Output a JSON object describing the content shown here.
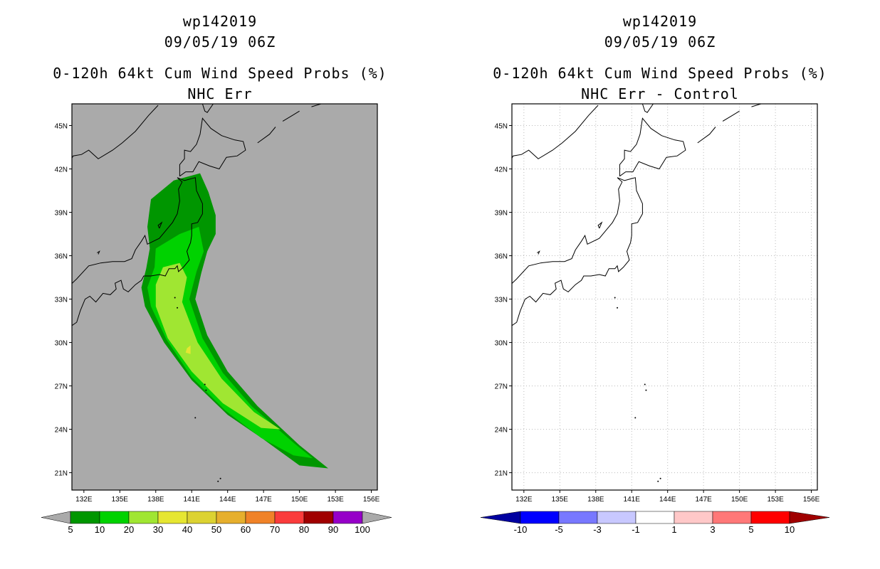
{
  "colors": {
    "land_bg_left": "#aaaaaa",
    "plot_bg_right": "#ffffff",
    "coast": "#000000",
    "grid": "#bbbbbb"
  },
  "panels": [
    {
      "title_line1": "wp142019",
      "title_line2": "09/05/19 06Z",
      "title_line3": "0-120h 64kt Cum Wind Speed Probs (%)",
      "title_line4": "NHC Err"
    },
    {
      "title_line1": "wp142019",
      "title_line2": "09/05/19 06Z",
      "title_line3": "0-120h 64kt Cum Wind Speed Probs (%)",
      "title_line4": "NHC Err - Control"
    }
  ],
  "axes": {
    "lon_ticks": [
      "132E",
      "135E",
      "138E",
      "141E",
      "144E",
      "147E",
      "150E",
      "153E",
      "156E"
    ],
    "lat_ticks": [
      "45N",
      "42N",
      "39N",
      "36N",
      "33N",
      "30N",
      "27N",
      "24N",
      "21N"
    ],
    "lon_values": [
      132,
      135,
      138,
      141,
      144,
      147,
      150,
      153,
      156
    ],
    "lat_values": [
      45,
      42,
      39,
      36,
      33,
      30,
      27,
      24,
      21
    ],
    "lon_range": [
      131,
      156.5
    ],
    "lat_range": [
      19.8,
      46.5
    ]
  },
  "colorbar_left": {
    "labels": [
      "5",
      "10",
      "20",
      "30",
      "40",
      "50",
      "60",
      "70",
      "80",
      "90",
      "100"
    ],
    "colors": [
      "#009600",
      "#00d200",
      "#a0e632",
      "#e6e632",
      "#dcd232",
      "#e6af2d",
      "#f08228",
      "#fa3c3c",
      "#a00000",
      "#9600c8"
    ],
    "end_color": "#aaaaaa"
  },
  "colorbar_right": {
    "labels": [
      "-10",
      "-5",
      "-3",
      "-1",
      "1",
      "3",
      "5",
      "10"
    ],
    "colors": [
      "#0000ff",
      "#7878ff",
      "#c8c8ff",
      "#ffffff",
      "#ffc8c8",
      "#ff7878",
      "#ff0000"
    ],
    "low_end": "#0000a0",
    "high_end": "#a00000"
  },
  "chart_data": {
    "type": "heatmap",
    "variable": "0-120h 64kt cumulative wind speed probability (%)",
    "storm": "wp142019",
    "valid": "09/05/19 06Z",
    "contour_levels": [
      5,
      10,
      20,
      30
    ],
    "swath_5pct": [
      [
        137.6,
        39.9
      ],
      [
        139.5,
        41.2
      ],
      [
        141.7,
        41.7
      ],
      [
        142.4,
        40.4
      ],
      [
        143.0,
        38.8
      ],
      [
        143.0,
        37.5
      ],
      [
        142.3,
        36.3
      ],
      [
        141.8,
        34.8
      ],
      [
        141.3,
        33.0
      ],
      [
        142.3,
        30.5
      ],
      [
        144.0,
        28.0
      ],
      [
        146.5,
        25.6
      ],
      [
        150.0,
        22.9
      ],
      [
        152.4,
        21.3
      ],
      [
        150.0,
        21.5
      ],
      [
        147.0,
        23.3
      ],
      [
        144.0,
        25.0
      ],
      [
        141.0,
        27.4
      ],
      [
        138.7,
        30.0
      ],
      [
        137.1,
        32.5
      ],
      [
        136.8,
        33.8
      ],
      [
        137.2,
        35.1
      ],
      [
        137.5,
        36.5
      ],
      [
        137.3,
        38.0
      ]
    ],
    "swath_10pct": [
      [
        138.0,
        36.5
      ],
      [
        140.0,
        37.5
      ],
      [
        141.6,
        38.0
      ],
      [
        142.0,
        36.3
      ],
      [
        141.4,
        34.9
      ],
      [
        140.8,
        33.0
      ],
      [
        141.9,
        30.3
      ],
      [
        143.6,
        27.9
      ],
      [
        146.0,
        25.6
      ],
      [
        149.6,
        23.0
      ],
      [
        151.1,
        22.0
      ],
      [
        149.5,
        22.2
      ],
      [
        146.8,
        23.4
      ],
      [
        143.8,
        25.3
      ],
      [
        141.0,
        27.6
      ],
      [
        138.9,
        30.2
      ],
      [
        137.6,
        32.5
      ],
      [
        137.3,
        33.8
      ],
      [
        137.9,
        35.2
      ]
    ],
    "swath_20pct": [
      [
        138.6,
        35.2
      ],
      [
        140.0,
        35.5
      ],
      [
        140.6,
        34.5
      ],
      [
        140.2,
        32.8
      ],
      [
        141.5,
        30.0
      ],
      [
        143.5,
        27.5
      ],
      [
        146.2,
        25.2
      ],
      [
        148.4,
        24.0
      ],
      [
        146.8,
        24.1
      ],
      [
        143.6,
        25.8
      ],
      [
        141.0,
        28.0
      ],
      [
        139.0,
        30.3
      ],
      [
        138.0,
        32.5
      ],
      [
        138.0,
        34.0
      ]
    ],
    "swath_30pct": [
      [
        140.6,
        29.6
      ],
      [
        140.9,
        29.8
      ],
      [
        140.9,
        29.2
      ],
      [
        140.5,
        29.3
      ]
    ],
    "control_difference_note": "difference field within -1 to 1 everywhere (blank)"
  }
}
